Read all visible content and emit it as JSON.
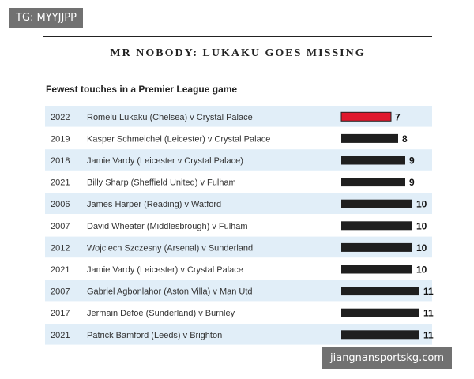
{
  "watermarks": {
    "top_left": "TG: MYYJJPP",
    "bottom_right": "jiangnansportskg.com"
  },
  "chart_data": {
    "type": "bar",
    "title": "MR NOBODY: LUKAKU GOES MISSING",
    "subtitle": "Fewest touches in a Premier League game",
    "rows": [
      {
        "year": "2022",
        "label": "Romelu Lukaku (Chelsea) v Crystal Palace",
        "value": 7,
        "highlight": true
      },
      {
        "year": "2019",
        "label": "Kasper Schmeichel (Leicester) v Crystal Palace",
        "value": 8,
        "highlight": false
      },
      {
        "year": "2018",
        "label": "Jamie Vardy (Leicester v Crystal Palace)",
        "value": 9,
        "highlight": false
      },
      {
        "year": "2021",
        "label": "Billy Sharp (Sheffield United) v Fulham",
        "value": 9,
        "highlight": false
      },
      {
        "year": "2006",
        "label": "James Harper (Reading) v Watford",
        "value": 10,
        "highlight": false
      },
      {
        "year": "2007",
        "label": "David Wheater (Middlesbrough) v Fulham",
        "value": 10,
        "highlight": false
      },
      {
        "year": "2012",
        "label": "Wojciech Szczesny (Arsenal) v Sunderland",
        "value": 10,
        "highlight": false
      },
      {
        "year": "2021",
        "label": "Jamie Vardy (Leicester) v Crystal Palace",
        "value": 10,
        "highlight": false
      },
      {
        "year": "2007",
        "label": "Gabriel Agbonlahor (Aston Villa) v Man Utd",
        "value": 11,
        "highlight": false
      },
      {
        "year": "2017",
        "label": "Jermain Defoe (Sunderland) v Burnley",
        "value": 11,
        "highlight": false
      },
      {
        "year": "2021",
        "label": "Patrick Bamford (Leeds) v Brighton",
        "value": 11,
        "highlight": false
      }
    ],
    "colors": {
      "highlight_bar": "#e0182d",
      "bar": "#1f1f1f",
      "row_alt_bg": "#e1eef8",
      "row_bg": "#ffffff",
      "text": "#333333",
      "value_text": "#111111"
    }
  }
}
